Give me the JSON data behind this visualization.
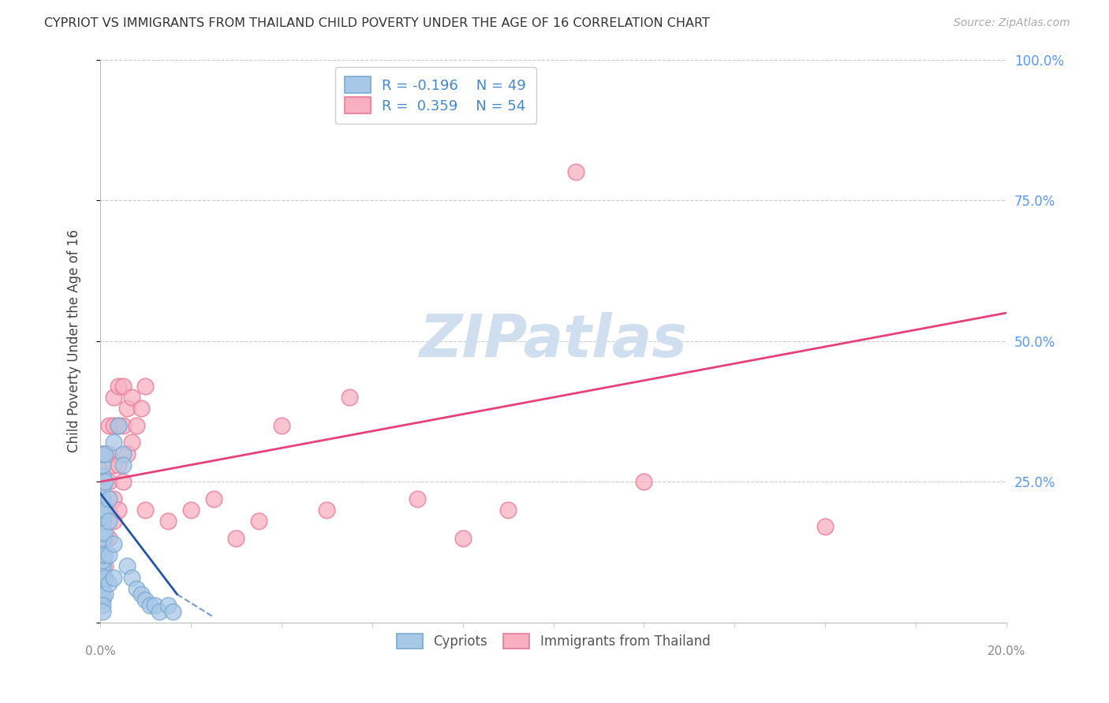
{
  "title": "CYPRIOT VS IMMIGRANTS FROM THAILAND CHILD POVERTY UNDER THE AGE OF 16 CORRELATION CHART",
  "source": "Source: ZipAtlas.com",
  "ylabel": "Child Poverty Under the Age of 16",
  "x_min": 0.0,
  "x_max": 20.0,
  "y_min": 0.0,
  "y_max": 100.0,
  "cypriot_color": "#a8c8e8",
  "thailand_color": "#f8b0c0",
  "cypriot_edge_color": "#7aaad0",
  "thailand_edge_color": "#e87898",
  "regression_cypriot_color": "#2255aa",
  "regression_thailand_color": "#e8407a",
  "legend_label_cypriot": "Cypriots",
  "legend_label_thailand": "Immigrants from Thailand",
  "R_cypriot": -0.196,
  "N_cypriot": 49,
  "R_thailand": 0.359,
  "N_thailand": 54,
  "background_color": "#ffffff",
  "grid_color": "#cccccc",
  "title_color": "#333333",
  "axis_label_color": "#444444",
  "tick_label_color_right": "#5599ff",
  "watermark_color": "#d0dff0",
  "cypriot_scatter": [
    [
      0.05,
      4
    ],
    [
      0.05,
      5
    ],
    [
      0.05,
      6
    ],
    [
      0.05,
      7
    ],
    [
      0.05,
      8
    ],
    [
      0.05,
      9
    ],
    [
      0.05,
      10
    ],
    [
      0.05,
      11
    ],
    [
      0.05,
      12
    ],
    [
      0.05,
      14
    ],
    [
      0.05,
      15
    ],
    [
      0.05,
      16
    ],
    [
      0.05,
      18
    ],
    [
      0.05,
      19
    ],
    [
      0.05,
      20
    ],
    [
      0.05,
      22
    ],
    [
      0.05,
      24
    ],
    [
      0.05,
      26
    ],
    [
      0.05,
      28
    ],
    [
      0.05,
      30
    ],
    [
      0.1,
      5
    ],
    [
      0.1,
      8
    ],
    [
      0.1,
      12
    ],
    [
      0.1,
      16
    ],
    [
      0.1,
      20
    ],
    [
      0.1,
      25
    ],
    [
      0.1,
      30
    ],
    [
      0.2,
      7
    ],
    [
      0.2,
      12
    ],
    [
      0.2,
      18
    ],
    [
      0.2,
      22
    ],
    [
      0.3,
      8
    ],
    [
      0.3,
      14
    ],
    [
      0.3,
      32
    ],
    [
      0.4,
      35
    ],
    [
      0.5,
      30
    ],
    [
      0.5,
      28
    ],
    [
      0.6,
      10
    ],
    [
      0.7,
      8
    ],
    [
      0.8,
      6
    ],
    [
      0.9,
      5
    ],
    [
      1.0,
      4
    ],
    [
      1.1,
      3
    ],
    [
      1.2,
      3
    ],
    [
      1.3,
      2
    ],
    [
      1.5,
      3
    ],
    [
      1.6,
      2
    ],
    [
      0.05,
      3
    ],
    [
      0.05,
      2
    ]
  ],
  "thailand_scatter": [
    [
      0.05,
      8
    ],
    [
      0.05,
      10
    ],
    [
      0.05,
      12
    ],
    [
      0.05,
      15
    ],
    [
      0.05,
      18
    ],
    [
      0.05,
      20
    ],
    [
      0.05,
      22
    ],
    [
      0.05,
      25
    ],
    [
      0.05,
      28
    ],
    [
      0.05,
      30
    ],
    [
      0.1,
      10
    ],
    [
      0.1,
      15
    ],
    [
      0.1,
      20
    ],
    [
      0.1,
      25
    ],
    [
      0.1,
      30
    ],
    [
      0.2,
      15
    ],
    [
      0.2,
      20
    ],
    [
      0.2,
      25
    ],
    [
      0.2,
      30
    ],
    [
      0.2,
      35
    ],
    [
      0.3,
      18
    ],
    [
      0.3,
      22
    ],
    [
      0.3,
      28
    ],
    [
      0.3,
      35
    ],
    [
      0.3,
      40
    ],
    [
      0.4,
      20
    ],
    [
      0.4,
      28
    ],
    [
      0.4,
      35
    ],
    [
      0.4,
      42
    ],
    [
      0.5,
      25
    ],
    [
      0.5,
      35
    ],
    [
      0.5,
      42
    ],
    [
      0.6,
      30
    ],
    [
      0.6,
      38
    ],
    [
      0.7,
      32
    ],
    [
      0.7,
      40
    ],
    [
      0.8,
      35
    ],
    [
      0.9,
      38
    ],
    [
      1.0,
      42
    ],
    [
      1.0,
      20
    ],
    [
      1.5,
      18
    ],
    [
      2.0,
      20
    ],
    [
      2.5,
      22
    ],
    [
      3.0,
      15
    ],
    [
      3.5,
      18
    ],
    [
      4.0,
      35
    ],
    [
      5.0,
      20
    ],
    [
      5.5,
      40
    ],
    [
      7.0,
      22
    ],
    [
      8.0,
      15
    ],
    [
      9.0,
      20
    ],
    [
      10.5,
      80
    ],
    [
      12.0,
      25
    ],
    [
      16.0,
      17
    ]
  ],
  "th_regression_x0": 0.0,
  "th_regression_y0": 25.0,
  "th_regression_x1": 20.0,
  "th_regression_y1": 55.0,
  "cy_regression_x0": 0.0,
  "cy_regression_y0": 23.0,
  "cy_regression_x1": 1.7,
  "cy_regression_y1": 5.0,
  "cy_regression_dashed_x0": 1.7,
  "cy_regression_dashed_y0": 5.0,
  "cy_regression_dashed_x1": 2.5,
  "cy_regression_dashed_y1": 1.0
}
